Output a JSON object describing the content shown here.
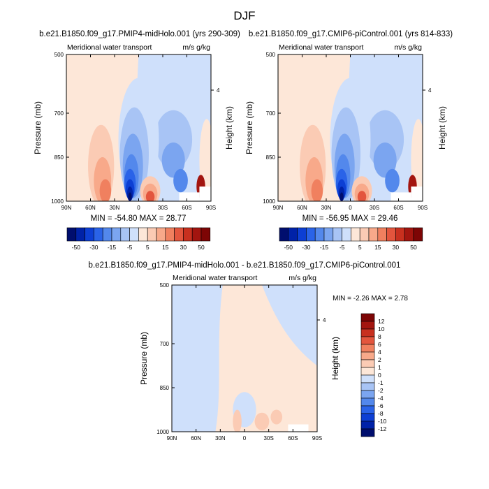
{
  "title": "DJF",
  "palettes": {
    "top": [
      "#000e6e",
      "#0022a8",
      "#0d3fd4",
      "#2a63e8",
      "#5388ec",
      "#7ba5f0",
      "#a8c4f5",
      "#cfe0fb",
      "#fde7d8",
      "#fbcbb4",
      "#f8a98a",
      "#f0805f",
      "#e3553d",
      "#c8301f",
      "#a3150f",
      "#7d0505"
    ],
    "diff": [
      "#000e6e",
      "#0022a8",
      "#0d3fd4",
      "#2a63e8",
      "#5388ec",
      "#7ba5f0",
      "#a8c4f5",
      "#cfe0fb",
      "#fde7d8",
      "#fbcbb4",
      "#f8a98a",
      "#f0805f",
      "#e3553d",
      "#c8301f",
      "#a3150f",
      "#7d0505"
    ]
  },
  "panels": [
    {
      "title": "b.e21.B1850.f09_g17.PMIP4-midHolo.001 (yrs 290-309)",
      "left_label": "Meridional water transport",
      "right_label": "m/s g/kg",
      "ylabel": "Pressure (mb)",
      "ylabel_right": "Height (km)",
      "min_max": "MIN = -54.80  MAX = 28.77"
    },
    {
      "title": "b.e21.B1850.f09_g17.CMIP6-piControl.001 (yrs 814-833)",
      "left_label": "Meridional water transport",
      "right_label": "m/s g/kg",
      "ylabel": "Pressure (mb)",
      "ylabel_right": "Height (km)",
      "min_max": "MIN = -56.95  MAX = 29.46"
    },
    {
      "title": "b.e21.B1850.f09_g17.PMIP4-midHolo.001 - b.e21.B1850.f09_g17.CMIP6-piControl.001",
      "left_label": "Meridional water transport",
      "right_label": "m/s g/kg",
      "ylabel": "Pressure (mb)",
      "ylabel_right": "Height (km)",
      "min_max": "MIN =  -2.26  MAX =   2.78"
    }
  ],
  "chart_data": [
    {
      "type": "heatmap",
      "title": "b.e21.B1850.f09_g17.PMIP4-midHolo.001 (yrs 290-309)",
      "variable": "Meridional water transport",
      "units": "m/s g/kg",
      "xlabel": "",
      "ylabel": "Pressure (mb)",
      "ylabel_right": "Height (km)",
      "x_ticks": [
        "90N",
        "60N",
        "30N",
        "0",
        "30S",
        "60S",
        "90S"
      ],
      "y_ticks": [
        500,
        700,
        850,
        1000
      ],
      "right_ticks": [
        "4"
      ],
      "min": -54.8,
      "max": 28.77,
      "contour_levels": [
        -50,
        -40,
        -30,
        -20,
        -15,
        -10,
        -5,
        -1,
        1,
        5,
        10,
        15,
        20,
        30,
        40,
        50
      ],
      "colorbar_labels": [
        "-50",
        "-30",
        "-15",
        "-5",
        "5",
        "15",
        "30",
        "50"
      ]
    },
    {
      "type": "heatmap",
      "title": "b.e21.B1850.f09_g17.CMIP6-piControl.001 (yrs 814-833)",
      "variable": "Meridional water transport",
      "units": "m/s g/kg",
      "xlabel": "",
      "ylabel": "Pressure (mb)",
      "ylabel_right": "Height (km)",
      "x_ticks": [
        "90N",
        "60N",
        "30N",
        "0",
        "30S",
        "60S",
        "90S"
      ],
      "y_ticks": [
        500,
        700,
        850,
        1000
      ],
      "right_ticks": [
        "4"
      ],
      "min": -56.95,
      "max": 29.46,
      "contour_levels": [
        -50,
        -40,
        -30,
        -20,
        -15,
        -10,
        -5,
        -1,
        1,
        5,
        10,
        15,
        20,
        30,
        40,
        50
      ],
      "colorbar_labels": [
        "-50",
        "-30",
        "-15",
        "-5",
        "5",
        "15",
        "30",
        "50"
      ]
    },
    {
      "type": "heatmap",
      "title": "b.e21.B1850.f09_g17.PMIP4-midHolo.001 - b.e21.B1850.f09_g17.CMIP6-piControl.001",
      "variable": "Meridional water transport",
      "units": "m/s g/kg",
      "xlabel": "",
      "ylabel": "Pressure (mb)",
      "ylabel_right": "Height (km)",
      "x_ticks": [
        "90N",
        "60N",
        "30N",
        "0",
        "30S",
        "60S",
        "90S"
      ],
      "y_ticks": [
        500,
        700,
        850,
        1000
      ],
      "right_ticks": [
        "4"
      ],
      "min": -2.26,
      "max": 2.78,
      "colorbar_labels": [
        "12",
        "10",
        "8",
        "6",
        "4",
        "2",
        "1",
        "0",
        "-1",
        "-2",
        "-4",
        "-6",
        "-8",
        "-10",
        "-12"
      ]
    }
  ]
}
